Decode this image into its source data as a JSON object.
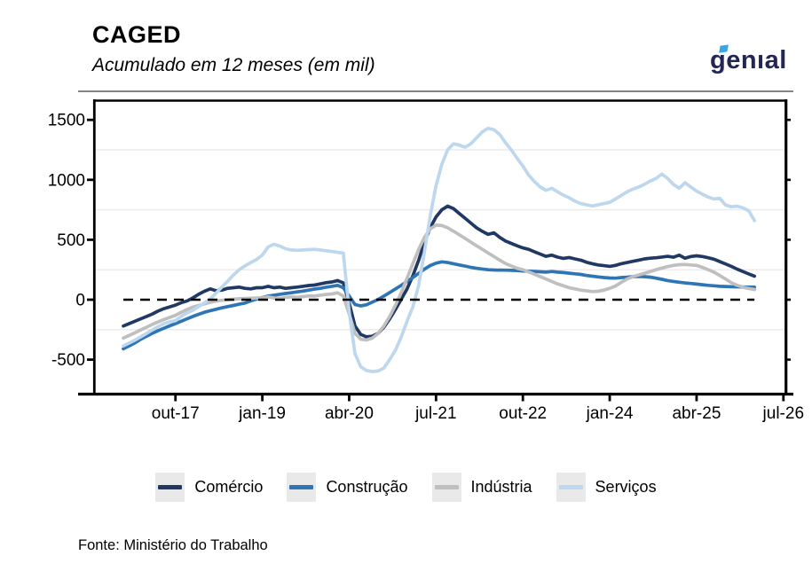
{
  "header": {
    "title": "CAGED",
    "subtitle": "Acumulado em 12 meses (em mil)",
    "logo_text": "genıal"
  },
  "footer": {
    "source": "Fonte: Ministério do Trabalho"
  },
  "colors": {
    "comercio": "#1F3864",
    "construcao": "#2E75B6",
    "industria": "#BFBFBF",
    "servicos": "#BDD7EE",
    "zero_line": "#000000",
    "gridline": "#ECECEC",
    "axis": "#000000",
    "legend_key_bg": "#E9E9E9",
    "logo_navy": "#232555",
    "logo_accent": "#35A7E8"
  },
  "legend": {
    "items": [
      {
        "label": "Comércio",
        "color": "#1F3864"
      },
      {
        "label": "Construção",
        "color": "#2E75B6"
      },
      {
        "label": "Indústria",
        "color": "#BFBFBF"
      },
      {
        "label": "Serviços",
        "color": "#BDD7EE"
      }
    ]
  },
  "chart_data": {
    "type": "line",
    "title": "CAGED",
    "subtitle": "Acumulado em 12 meses (em mil)",
    "x_unit": "month",
    "x_start": "jan-17",
    "x_end": "fev-26",
    "x_tick_labels": [
      "out-17",
      "jan-19",
      "abr-20",
      "jul-21",
      "out-22",
      "jan-24",
      "abr-25",
      "jul-26"
    ],
    "x_tick_month_index": [
      9,
      24,
      39,
      54,
      69,
      84,
      99,
      114
    ],
    "y_ticks": [
      1500,
      1000,
      500,
      0,
      -500
    ],
    "minor_gridlines": [
      1250,
      750,
      250,
      -250
    ],
    "ylim": [
      -787,
      1654
    ],
    "zero_dashed_line": true,
    "grid": "minor-horizontal",
    "legend_position": "bottom",
    "series": [
      {
        "name": "Comércio",
        "color": "#1F3864",
        "values": [
          -220,
          -200,
          -180,
          -160,
          -140,
          -120,
          -95,
          -75,
          -60,
          -45,
          -25,
          -10,
          15,
          45,
          70,
          90,
          75,
          80,
          95,
          100,
          105,
          95,
          90,
          100,
          100,
          112,
          100,
          105,
          95,
          100,
          105,
          112,
          118,
          122,
          132,
          142,
          148,
          160,
          140,
          -30,
          -220,
          -290,
          -310,
          -305,
          -280,
          -230,
          -160,
          -80,
          5,
          90,
          200,
          330,
          480,
          600,
          690,
          750,
          780,
          760,
          720,
          680,
          640,
          600,
          570,
          545,
          558,
          520,
          490,
          470,
          450,
          432,
          420,
          400,
          380,
          362,
          372,
          355,
          345,
          352,
          340,
          330,
          312,
          300,
          290,
          284,
          278,
          286,
          300,
          310,
          320,
          330,
          340,
          346,
          350,
          356,
          362,
          354,
          372,
          346,
          360,
          366,
          360,
          350,
          338,
          318,
          298,
          278,
          255,
          235,
          215,
          196
        ]
      },
      {
        "name": "Construção",
        "color": "#2E75B6",
        "values": [
          -410,
          -385,
          -360,
          -330,
          -305,
          -280,
          -258,
          -238,
          -218,
          -200,
          -180,
          -160,
          -140,
          -122,
          -105,
          -92,
          -80,
          -68,
          -58,
          -48,
          -38,
          -28,
          -10,
          5,
          18,
          30,
          38,
          45,
          52,
          58,
          65,
          72,
          80,
          88,
          95,
          104,
          112,
          120,
          100,
          30,
          -40,
          -52,
          -42,
          -20,
          2,
          30,
          60,
          90,
          120,
          152,
          185,
          220,
          255,
          285,
          305,
          316,
          310,
          300,
          290,
          280,
          270,
          262,
          256,
          250,
          248,
          247,
          246,
          245,
          243,
          240,
          238,
          236,
          233,
          230,
          235,
          230,
          226,
          221,
          216,
          211,
          202,
          196,
          190,
          185,
          181,
          180,
          185,
          188,
          192,
          194,
          192,
          188,
          180,
          170,
          160,
          152,
          146,
          140,
          135,
          130,
          125,
          120,
          116,
          112,
          110,
          108,
          107,
          106,
          105,
          104
        ]
      },
      {
        "name": "Indústria",
        "color": "#BFBFBF",
        "values": [
          -320,
          -298,
          -276,
          -252,
          -230,
          -206,
          -185,
          -166,
          -148,
          -130,
          -105,
          -82,
          -62,
          -48,
          -35,
          -22,
          -12,
          -5,
          0,
          4,
          8,
          10,
          12,
          14,
          16,
          24,
          14,
          12,
          18,
          24,
          20,
          26,
          32,
          30,
          38,
          44,
          48,
          58,
          30,
          -120,
          -280,
          -330,
          -336,
          -320,
          -280,
          -220,
          -140,
          -45,
          60,
          180,
          300,
          420,
          520,
          590,
          622,
          618,
          600,
          572,
          542,
          512,
          480,
          450,
          420,
          390,
          360,
          330,
          302,
          282,
          262,
          250,
          232,
          212,
          192,
          172,
          152,
          132,
          116,
          100,
          90,
          80,
          74,
          68,
          70,
          80,
          95,
          115,
          145,
          172,
          192,
          206,
          220,
          235,
          250,
          264,
          276,
          286,
          292,
          294,
          290,
          286,
          270,
          250,
          230,
          202,
          172,
          142,
          120,
          104,
          94,
          84
        ]
      },
      {
        "name": "Serviços",
        "color": "#BDD7EE",
        "values": [
          -385,
          -362,
          -338,
          -310,
          -282,
          -252,
          -225,
          -200,
          -185,
          -175,
          -140,
          -110,
          -88,
          -58,
          -25,
          5,
          55,
          105,
          152,
          205,
          250,
          282,
          310,
          335,
          372,
          440,
          462,
          448,
          425,
          415,
          412,
          415,
          418,
          420,
          415,
          408,
          402,
          395,
          388,
          -100,
          -450,
          -560,
          -590,
          -600,
          -595,
          -570,
          -500,
          -420,
          -310,
          -180,
          -60,
          120,
          400,
          700,
          950,
          1130,
          1250,
          1300,
          1290,
          1272,
          1300,
          1350,
          1400,
          1430,
          1418,
          1378,
          1310,
          1250,
          1180,
          1115,
          1040,
          985,
          940,
          912,
          930,
          900,
          872,
          850,
          822,
          802,
          792,
          782,
          792,
          802,
          812,
          840,
          870,
          900,
          922,
          940,
          962,
          990,
          1012,
          1048,
          1012,
          962,
          930,
          976,
          940,
          906,
          880,
          856,
          840,
          846,
          790,
          775,
          780,
          766,
          742,
          660
        ]
      }
    ]
  }
}
